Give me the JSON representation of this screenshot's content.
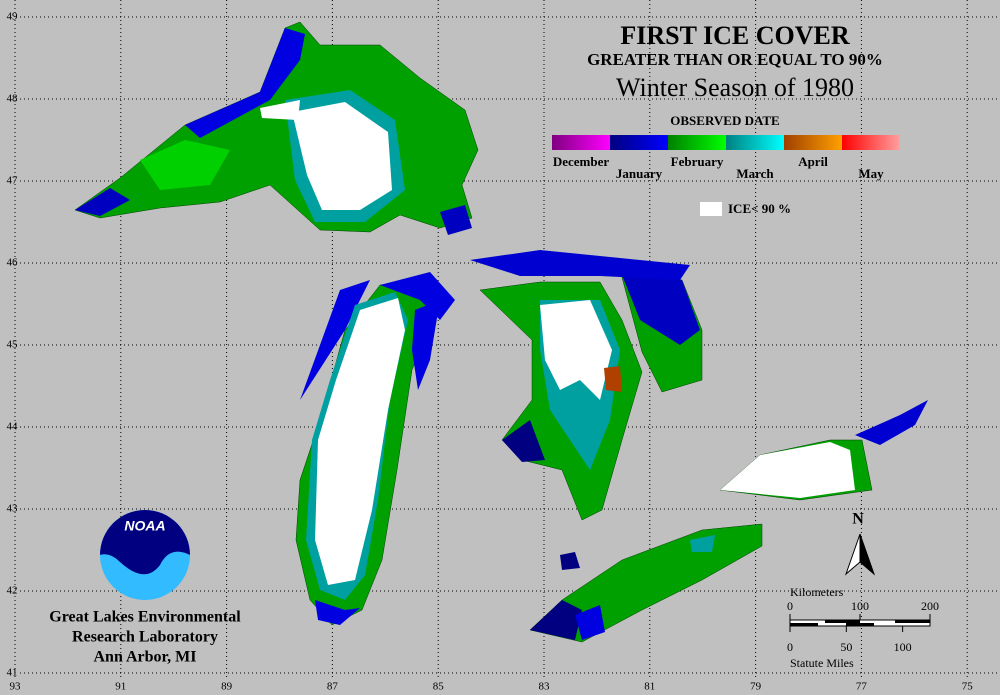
{
  "map": {
    "title": "FIRST ICE COVER",
    "subtitle": "GREATER THAN OR EQUAL TO 90%",
    "season": "Winter Season of 1980",
    "legend": {
      "title": "OBSERVED DATE",
      "items": [
        {
          "label": "December",
          "colors": [
            "#800080",
            "#ff00ff"
          ]
        },
        {
          "label": "January",
          "colors": [
            "#000080",
            "#0000ff"
          ]
        },
        {
          "label": "February",
          "colors": [
            "#008000",
            "#00ff00"
          ]
        },
        {
          "label": "March",
          "colors": [
            "#008080",
            "#00ffff"
          ]
        },
        {
          "label": "April",
          "colors": [
            "#a04000",
            "#ffa000"
          ]
        },
        {
          "label": "May",
          "colors": [
            "#ff0000",
            "#ffa0a0"
          ]
        }
      ]
    },
    "ice_note": "ICE< 90 %",
    "north": "N",
    "scale": {
      "km_label": "Kilometers",
      "km_ticks": [
        0,
        100,
        200
      ],
      "mile_ticks": [
        0,
        50,
        100
      ],
      "mile_label": "Statute Miles"
    },
    "latitudes": [
      49,
      48,
      47,
      46,
      45,
      44,
      43,
      42,
      41
    ],
    "longitudes": [
      93,
      91,
      89,
      87,
      85,
      83,
      81,
      79,
      77,
      75
    ],
    "logo": "NOAA",
    "credit": [
      "Great Lakes Environmental",
      "Research Laboratory",
      "Ann Arbor, MI"
    ]
  }
}
